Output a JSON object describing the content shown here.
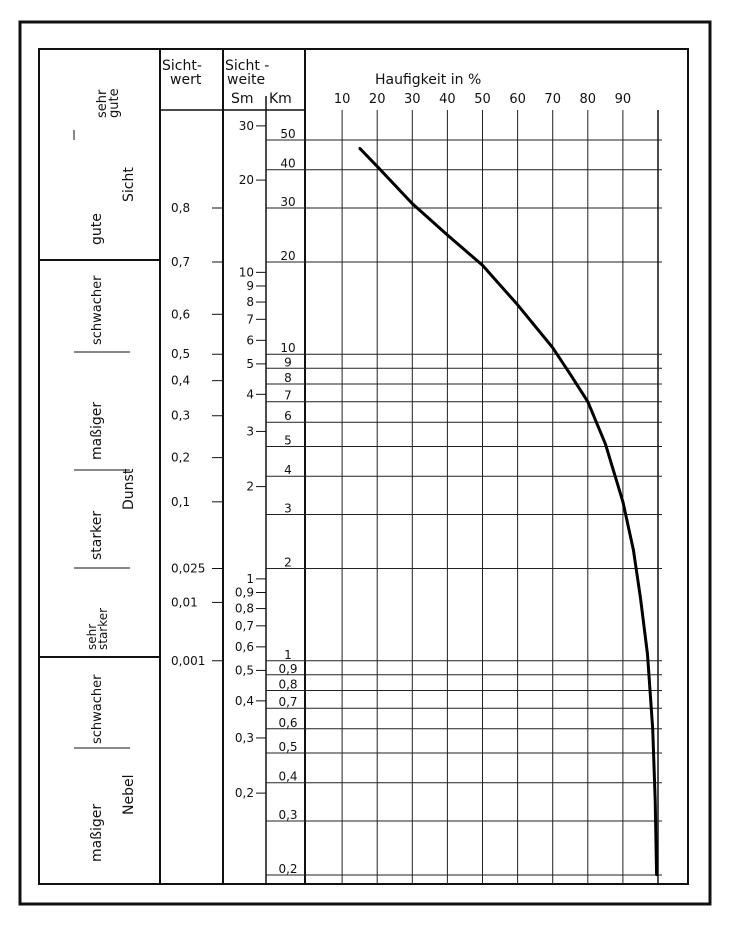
{
  "header": {
    "sichtwert": [
      "Sicht-",
      "wert"
    ],
    "sichtweite": [
      "Sicht -",
      "weite"
    ],
    "sm": "Sm",
    "km": "Km",
    "haeufigkeit": "Haufigkeit in %"
  },
  "categories": {
    "sehr_gute": [
      "sehr",
      "gute"
    ],
    "gute": "gute",
    "sicht": "Sicht",
    "schwacher_dunst": "schwacher",
    "massiger_dunst": "maßiger",
    "dunst": "Dunst",
    "starker_dunst": "starker",
    "sehr_starker_dunst": [
      "sehr",
      "starker"
    ],
    "schwacher_nebel": "schwacher",
    "massiger_nebel": "maßiger",
    "nebel": "Nebel"
  },
  "sichtwert_labels": [
    {
      "label": "0,8",
      "km": 30
    },
    {
      "label": "0,7",
      "km": 20
    },
    {
      "label": "0,6",
      "km": 13.5
    },
    {
      "label": "0,5",
      "km": 10
    },
    {
      "label": "0,4",
      "km": 8.2
    },
    {
      "label": "0,3",
      "km": 6.3
    },
    {
      "label": "0,2",
      "km": 4.6
    },
    {
      "label": "0,1",
      "km": 3.3
    },
    {
      "label": "0,025",
      "km": 2
    },
    {
      "label": "0,01",
      "km": 1.55
    },
    {
      "label": "0,001",
      "km": 1
    }
  ],
  "sm_ticks": [
    {
      "label": "30",
      "km": 55.6
    },
    {
      "label": "20",
      "km": 37
    },
    {
      "label": "10",
      "km": 18.5
    },
    {
      "label": "9",
      "km": 16.7
    },
    {
      "label": "8",
      "km": 14.8
    },
    {
      "label": "7",
      "km": 13
    },
    {
      "label": "6",
      "km": 11.1
    },
    {
      "label": "5",
      "km": 9.3
    },
    {
      "label": "4",
      "km": 7.4
    },
    {
      "label": "3",
      "km": 5.6
    },
    {
      "label": "2",
      "km": 3.7
    },
    {
      "label": "1",
      "km": 1.85
    },
    {
      "label": "0,9",
      "km": 1.67
    },
    {
      "label": "0,8",
      "km": 1.48
    },
    {
      "label": "0,7",
      "km": 1.3
    },
    {
      "label": "0,6",
      "km": 1.11
    },
    {
      "label": "0,5",
      "km": 0.93
    },
    {
      "label": "0,4",
      "km": 0.74
    },
    {
      "label": "0,3",
      "km": 0.56
    },
    {
      "label": "0,2",
      "km": 0.37
    }
  ],
  "chart_data": {
    "type": "line",
    "xlabel": "Haufigkeit in %",
    "ylabel": "Km",
    "x_ticks": [
      10,
      20,
      30,
      40,
      50,
      60,
      70,
      80,
      90
    ],
    "xlim": [
      0,
      100
    ],
    "y_ticks": [
      50,
      40,
      30,
      20,
      10,
      9,
      8,
      7,
      6,
      5,
      4,
      3,
      2,
      1,
      0.9,
      0.8,
      0.7,
      0.6,
      0.5,
      0.4,
      0.3,
      0.2
    ],
    "y_tick_labels": [
      "50",
      "40",
      "30",
      "20",
      "10",
      "9",
      "8",
      "7",
      "6",
      "5",
      "4",
      "3",
      "2",
      "1",
      "0,9",
      "0,8",
      "0,7",
      "0,6",
      "0,5",
      "0,4",
      "0,3",
      "0,2"
    ],
    "ylim": [
      0.19,
      70
    ],
    "yscale": "log",
    "grid": true,
    "series": [
      {
        "x": [
          15,
          20,
          30,
          40,
          50,
          60,
          70,
          75,
          80,
          85,
          90,
          93,
          95,
          97,
          98.5,
          99.2,
          99.6
        ],
        "y": [
          47,
          41,
          31,
          24.5,
          19.5,
          14.5,
          10.5,
          8.6,
          7,
          5.1,
          3.3,
          2.3,
          1.6,
          1.05,
          0.6,
          0.35,
          0.2
        ]
      }
    ]
  }
}
